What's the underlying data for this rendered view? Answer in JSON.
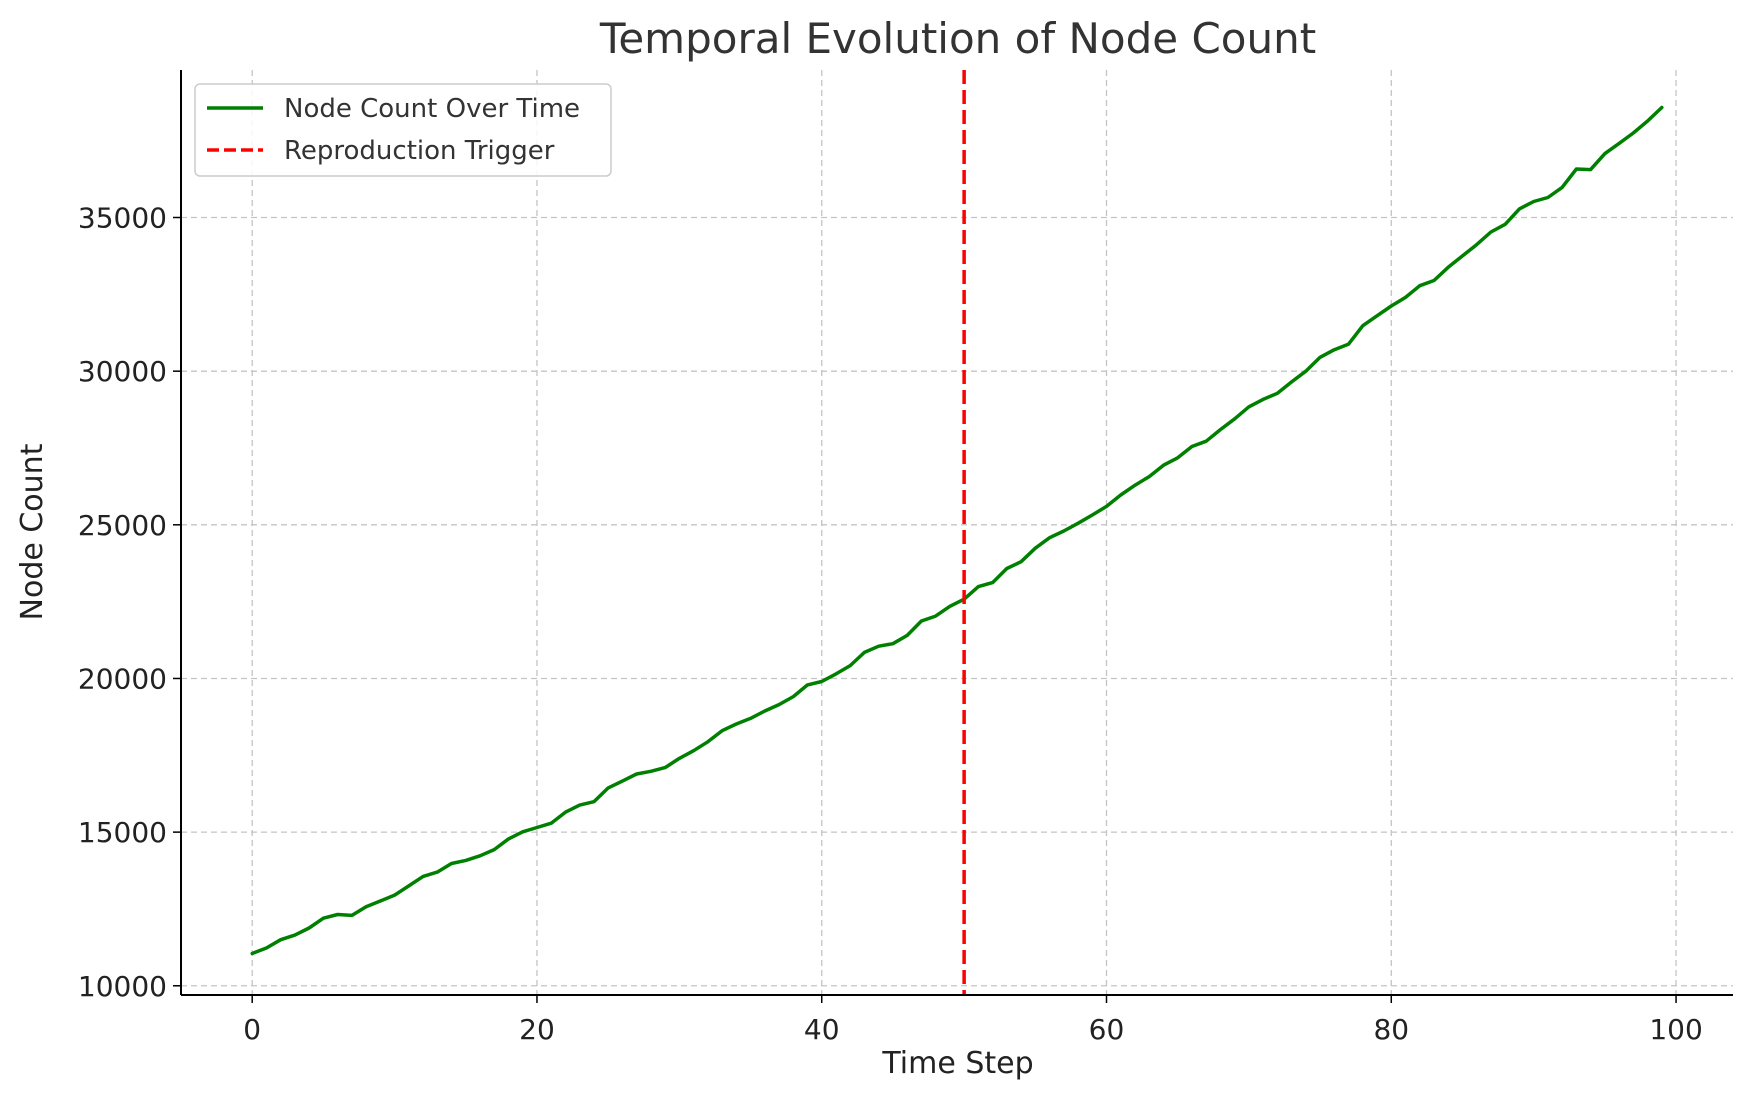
{
  "chart_data": {
    "type": "line",
    "title": "Temporal Evolution of Node Count",
    "xlabel": "Time Step",
    "ylabel": "Node Count",
    "xlim": [
      -5,
      104
    ],
    "ylim": [
      9700,
      39800
    ],
    "xticks": [
      0,
      20,
      40,
      60,
      80,
      100
    ],
    "yticks": [
      10000,
      15000,
      20000,
      25000,
      30000,
      35000
    ],
    "grid": true,
    "legend_position": "top-left",
    "colors": {
      "series": "#008000",
      "trigger": "#ff0000"
    },
    "series": [
      {
        "name": "Node Count Over Time",
        "x": [
          0,
          1,
          2,
          3,
          4,
          5,
          6,
          7,
          8,
          9,
          10,
          11,
          12,
          13,
          14,
          15,
          16,
          17,
          18,
          19,
          20,
          21,
          22,
          23,
          24,
          25,
          26,
          27,
          28,
          29,
          30,
          31,
          32,
          33,
          34,
          35,
          36,
          37,
          38,
          39,
          40,
          41,
          42,
          43,
          44,
          45,
          46,
          47,
          48,
          49,
          50,
          51,
          52,
          53,
          54,
          55,
          56,
          57,
          58,
          59,
          60,
          61,
          62,
          63,
          64,
          65,
          66,
          67,
          68,
          69,
          70,
          71,
          72,
          73,
          74,
          75,
          76,
          77,
          78,
          79,
          80,
          81,
          82,
          83,
          84,
          85,
          86,
          87,
          88,
          89,
          90,
          91,
          92,
          93,
          94,
          95,
          96,
          97,
          98,
          99
        ],
        "y": [
          11050,
          11230,
          11500,
          11650,
          11880,
          12200,
          12320,
          12290,
          12570,
          12760,
          12950,
          13250,
          13560,
          13700,
          13980,
          14080,
          14230,
          14430,
          14780,
          15010,
          15150,
          15290,
          15650,
          15880,
          15990,
          16440,
          16660,
          16890,
          16980,
          17100,
          17400,
          17650,
          17940,
          18300,
          18520,
          18700,
          18940,
          19150,
          19410,
          19790,
          19900,
          20150,
          20420,
          20850,
          21050,
          21130,
          21400,
          21870,
          22030,
          22350,
          22580,
          22990,
          23120,
          23580,
          23800,
          24240,
          24580,
          24800,
          25050,
          25320,
          25600,
          25970,
          26290,
          26570,
          26940,
          27180,
          27550,
          27720,
          28100,
          28450,
          28840,
          29080,
          29280,
          29650,
          30000,
          30450,
          30700,
          30880,
          31480,
          31800,
          32120,
          32400,
          32780,
          32950,
          33380,
          33750,
          34120,
          34530,
          34780,
          35280,
          35520,
          35650,
          35980,
          36580,
          36560,
          37080,
          37410,
          37750,
          38140,
          38580
        ]
      }
    ],
    "vertical_lines": [
      {
        "name": "Reproduction Trigger",
        "x": 50,
        "style": "dashed"
      }
    ]
  }
}
